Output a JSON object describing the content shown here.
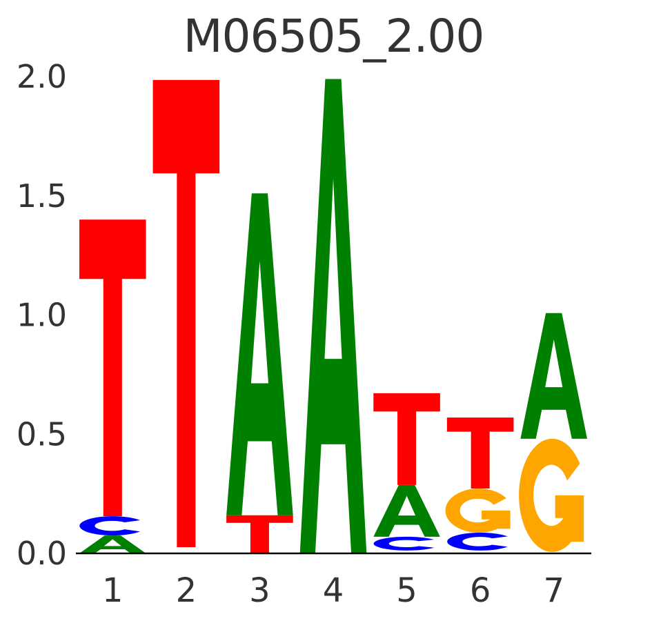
{
  "chart_data": {
    "type": "sequence_logo",
    "title": "M06505_2.00",
    "ylabel": "",
    "xlabel": "",
    "ylim": [
      0,
      2
    ],
    "yticks": [
      "0.0",
      "0.5",
      "1.0",
      "1.5",
      "2.0"
    ],
    "xticks": [
      "1",
      "2",
      "3",
      "4",
      "5",
      "6",
      "7"
    ],
    "legend": "none",
    "grid": false,
    "colors": {
      "A": "#008000",
      "C": "#0000FF",
      "G": "#FFA500",
      "T": "#FF0000"
    },
    "positions": [
      {
        "label": "1",
        "offset": 0.0,
        "stack": [
          {
            "base": "A",
            "bits": 0.075
          },
          {
            "base": "C",
            "bits": 0.081
          },
          {
            "base": "T",
            "bits": 1.244
          }
        ]
      },
      {
        "label": "2",
        "offset": 0.026,
        "stack": [
          {
            "base": "T",
            "bits": 1.96
          }
        ]
      },
      {
        "label": "3",
        "offset": 0.0,
        "stack": [
          {
            "base": "T",
            "bits": 0.16
          },
          {
            "base": "A",
            "bits": 1.35
          }
        ]
      },
      {
        "label": "4",
        "offset": 0.0,
        "stack": [
          {
            "base": "A",
            "bits": 1.99
          }
        ]
      },
      {
        "label": "5",
        "offset": 0.012,
        "stack": [
          {
            "base": "C",
            "bits": 0.058
          },
          {
            "base": "A",
            "bits": 0.217
          },
          {
            "base": "T",
            "bits": 0.385
          }
        ]
      },
      {
        "label": "6",
        "offset": 0.012,
        "stack": [
          {
            "base": "C",
            "bits": 0.075
          },
          {
            "base": "G",
            "bits": 0.185
          },
          {
            "base": "T",
            "bits": 0.298
          }
        ]
      },
      {
        "label": "7",
        "offset": 0.006,
        "stack": [
          {
            "base": "G",
            "bits": 0.475
          },
          {
            "base": "A",
            "bits": 0.527
          }
        ]
      }
    ]
  }
}
